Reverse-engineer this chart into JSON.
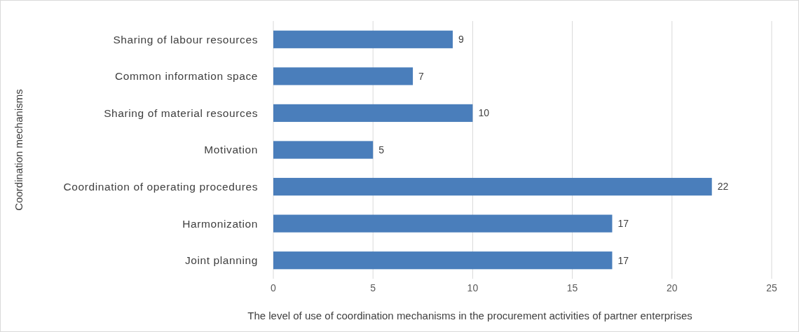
{
  "chart_data": {
    "type": "bar",
    "orientation": "horizontal",
    "xlabel": "The level of use of coordination mechanisms in the procurement activities of partner enterprises",
    "ylabel": "Coordination mechanisms",
    "categories": [
      "Sharing of labour resources",
      "Common information space",
      "Sharing of material resources",
      "Motivation",
      "Coordination of operating procedures",
      "Harmonization",
      "Joint planning"
    ],
    "values": [
      9,
      7,
      10,
      5,
      22,
      17,
      17
    ],
    "color": "#4a7ebb",
    "xlim": [
      0,
      25
    ],
    "xticks": [
      0,
      5,
      10,
      15,
      20,
      25
    ],
    "grid": "x",
    "data_labels": true
  }
}
